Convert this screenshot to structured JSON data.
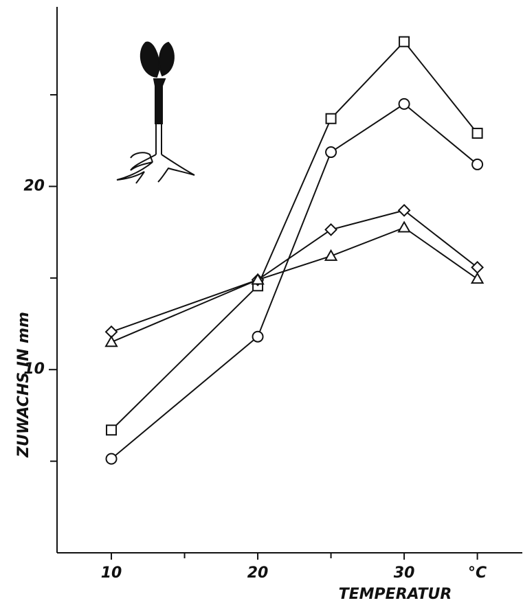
{
  "chart_data": {
    "type": "line",
    "x_label": "TEMPERATUR",
    "y_label": "ZUWACHS IN mm",
    "x": [
      10,
      20,
      25,
      30,
      35
    ],
    "xlim": [
      6.29,
      38.07
    ],
    "ylim": [
      0,
      29.8
    ],
    "xticks": [
      10,
      20,
      30,
      {
        "value": 35,
        "label": "°C"
      }
    ],
    "xminor_ticks": [
      15,
      25
    ],
    "yticks": [
      10,
      20
    ],
    "yminor_ticks": [
      5,
      15,
      25
    ],
    "series": [
      {
        "marker": "square",
        "color": "#111111",
        "values": [
          6.7,
          14.57,
          23.7,
          27.9,
          22.9
        ]
      },
      {
        "marker": "circle",
        "color": "#111111",
        "values": [
          5.13,
          11.8,
          21.87,
          24.5,
          21.2
        ]
      },
      {
        "marker": "diamond",
        "color": "#111111",
        "values": [
          12.06,
          14.9,
          17.64,
          18.69,
          15.58
        ]
      },
      {
        "marker": "triangle",
        "color": "#111111",
        "values": [
          11.5,
          14.9,
          16.2,
          17.75,
          14.95
        ]
      }
    ]
  }
}
